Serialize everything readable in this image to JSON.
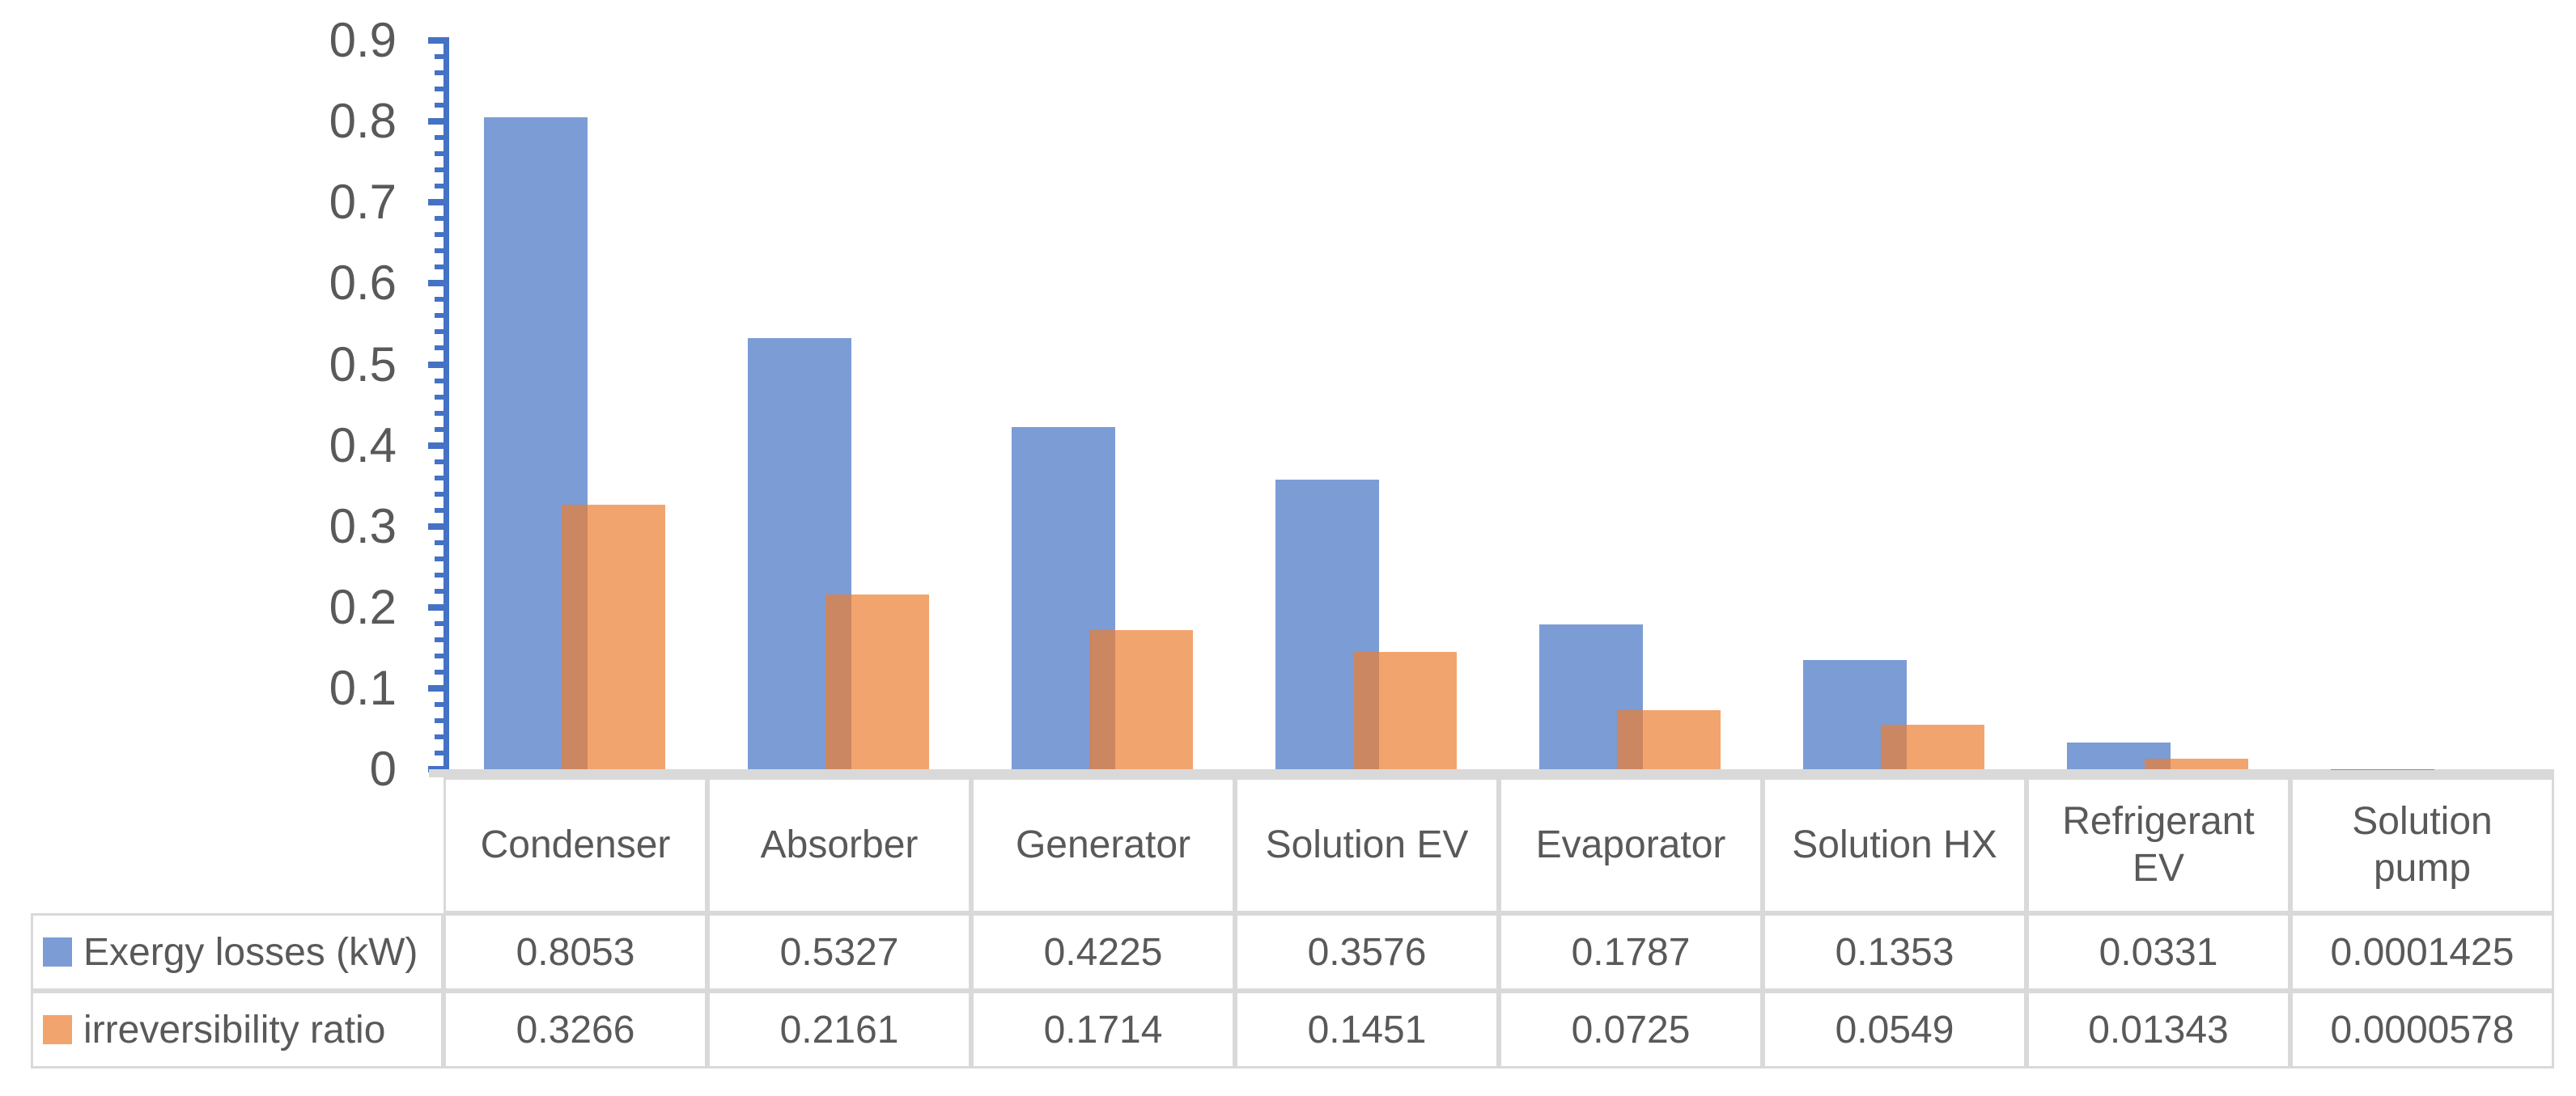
{
  "chart_data": {
    "type": "bar",
    "title": "",
    "categories": [
      "Condenser",
      "Absorber",
      "Generator",
      "Solution EV",
      "Evaporator",
      "Solution HX",
      "Refrigerant EV",
      "Solution pump"
    ],
    "series": [
      {
        "name": "Exergy losses (kW)",
        "color": "#4472C4",
        "fill_opacity": 0.7,
        "values": [
          0.8053,
          0.5327,
          0.4225,
          0.3576,
          0.1787,
          0.1353,
          0.0331,
          0.0001425
        ],
        "value_labels": [
          "0.8053",
          "0.5327",
          "0.4225",
          "0.3576",
          "0.1787",
          "0.1353",
          "0.0331",
          "0.0001425"
        ]
      },
      {
        "name": "irreversibility ratio",
        "color": "#ED7D31",
        "fill_opacity": 0.7,
        "values": [
          0.3266,
          0.2161,
          0.1714,
          0.1451,
          0.0725,
          0.0549,
          0.01343,
          5.78e-05
        ],
        "value_labels": [
          "0.3266",
          "0.2161",
          "0.1714",
          "0.1451",
          "0.0725",
          "0.0549",
          "0.01343",
          "0.0000578"
        ]
      }
    ],
    "y_axis": {
      "min": 0,
      "max": 0.9,
      "major_step": 0.1,
      "minor_step": 0.02,
      "tick_labels": [
        "0",
        "0.1",
        "0.2",
        "0.3",
        "0.4",
        "0.5",
        "0.6",
        "0.7",
        "0.8",
        "0.9"
      ],
      "axis_color": "#4472C4"
    },
    "xlabel": "",
    "ylabel": "",
    "gridlines": false,
    "legend_position": "table-left",
    "colors": {
      "table_border": "#D9D9D9",
      "baseline": "#D9D9D9",
      "text": "#595959",
      "background": "#FFFFFF"
    }
  }
}
